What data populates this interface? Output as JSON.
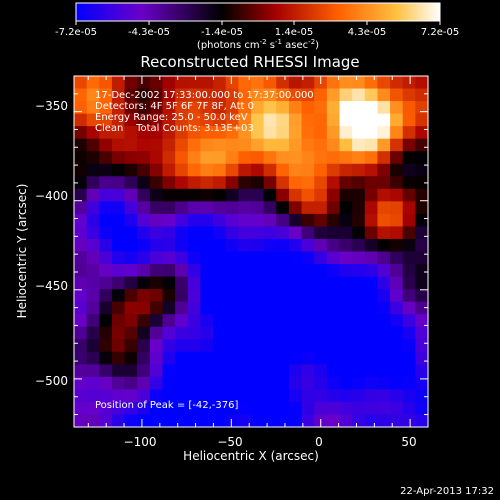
{
  "colorbar": {
    "tick_labels": [
      "-7.2e-05",
      "-4.3e-05",
      "-1.4e-05",
      "1.4e-05",
      "4.3e-05",
      "7.2e-05"
    ],
    "unit_parts": [
      "(photons cm",
      "-2",
      " s",
      "-1",
      " asec",
      "-2",
      ")"
    ],
    "range": [
      -7.2e-05,
      7.2e-05
    ],
    "colormap": [
      "#0000ff",
      "#6a00c8",
      "#000000",
      "#a50000",
      "#ff6000",
      "#ffc040",
      "#ffffff"
    ]
  },
  "plot": {
    "title": "Reconstructed RHESSI Image",
    "annotation_lines": [
      "17-Dec-2002 17:33:00.000 to 17:37:00.000",
      "Detectors: 4F 5F 6F 7F 8F, Att 0",
      "Energy Range: 25.0 - 50.0 keV",
      "Clean    Total Counts: 3.13E+03"
    ],
    "peak_label": "Position of Peak = [-42,-376]",
    "peak_position": [
      -42,
      -376
    ],
    "x_axis": {
      "label": "Heliocentric X (arcsec)",
      "ticks": [
        -100,
        -50,
        0,
        50
      ],
      "tick_labels": [
        "−100",
        "−50",
        "0",
        "50"
      ],
      "range": [
        -138,
        60
      ]
    },
    "y_axis": {
      "label": "Heliocentric Y (arcsec)",
      "ticks": [
        -350,
        -400,
        -450,
        -500
      ],
      "tick_labels": [
        "−350",
        "−400",
        "−450",
        "−500"
      ],
      "range": [
        -527,
        -330
      ]
    }
  },
  "footer": {
    "timestamp": "22-Apr-2013 17:32"
  }
}
